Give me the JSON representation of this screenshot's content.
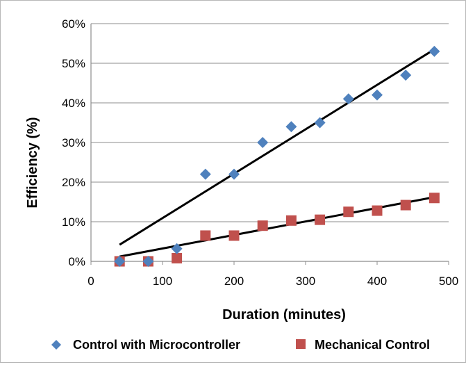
{
  "chart_data": {
    "type": "scatter",
    "title": "",
    "xlabel": "Duration (minutes)",
    "ylabel": "Efficiency (%)",
    "xlim": [
      0,
      500
    ],
    "ylim": [
      0,
      60
    ],
    "x_ticks": [
      0,
      100,
      200,
      300,
      400,
      500
    ],
    "x_tick_labels": [
      "0",
      "100",
      "200",
      "300",
      "400",
      "500"
    ],
    "y_ticks": [
      0,
      10,
      20,
      30,
      40,
      50,
      60
    ],
    "y_tick_labels": [
      "0%",
      "10%",
      "20%",
      "30%",
      "40%",
      "50%",
      "60%"
    ],
    "grid": "horizontal",
    "legend_position": "bottom",
    "series": [
      {
        "name": "Control with Microcontroller",
        "marker": "diamond",
        "color": "#4F81BD",
        "x": [
          40,
          80,
          120,
          160,
          200,
          240,
          280,
          320,
          360,
          400,
          440,
          480
        ],
        "y": [
          0,
          0,
          3.2,
          22,
          22,
          30,
          34,
          35,
          41,
          42,
          47,
          53
        ],
        "trendline": {
          "x": [
            40,
            480
          ],
          "y": [
            4.2,
            53.5
          ]
        }
      },
      {
        "name": "Mechanical Control",
        "marker": "square",
        "color": "#C0504D",
        "x": [
          40,
          80,
          120,
          160,
          200,
          240,
          280,
          320,
          360,
          400,
          440,
          480
        ],
        "y": [
          0,
          0,
          0.8,
          6.5,
          6.5,
          9,
          10.3,
          10.5,
          12.5,
          12.8,
          14.2,
          16
        ],
        "trendline": {
          "x": [
            40,
            480
          ],
          "y": [
            1.2,
            16.2
          ]
        }
      }
    ]
  }
}
